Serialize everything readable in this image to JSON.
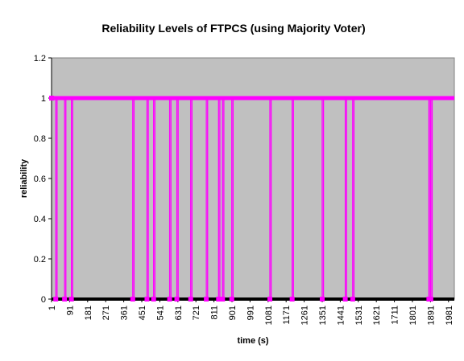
{
  "chart_data": {
    "type": "line",
    "title": "Reliability Levels of FTPCS (using Majority Voter)",
    "xlabel": "time (s)",
    "ylabel": "reliability",
    "xlim": [
      1,
      2010
    ],
    "ylim": [
      0,
      1.2
    ],
    "y_ticks": [
      "0",
      "0.2",
      "0.4",
      "0.6",
      "0.8",
      "1",
      "1.2"
    ],
    "x_ticks": [
      "1",
      "91",
      "181",
      "271",
      "361",
      "451",
      "541",
      "631",
      "721",
      "811",
      "901",
      "991",
      "1081",
      "1171",
      "1261",
      "1351",
      "1441",
      "1531",
      "1621",
      "1711",
      "1801",
      "1891",
      "1981"
    ],
    "grid": false,
    "legend": "none",
    "series": [
      {
        "baseline": 1,
        "dips": [
          {
            "time": 22,
            "value": 0
          },
          {
            "time": 66,
            "value": 0
          },
          {
            "time": 100,
            "value": 0
          },
          {
            "time": 406,
            "value": 0
          },
          {
            "time": 477,
            "value": 0
          },
          {
            "time": 510,
            "value": 0
          },
          {
            "time": 590,
            "value": 0
          },
          {
            "time": 626,
            "value": 0
          },
          {
            "time": 695,
            "value": 0
          },
          {
            "time": 773,
            "value": 0
          },
          {
            "time": 834,
            "value": 0
          },
          {
            "time": 854,
            "value": 0
          },
          {
            "time": 900,
            "value": 0
          },
          {
            "time": 1090,
            "value": 0
          },
          {
            "time": 1201,
            "value": 0
          },
          {
            "time": 1351,
            "value": 0
          },
          {
            "time": 1466,
            "value": 0
          },
          {
            "time": 1503,
            "value": 0
          },
          {
            "time": 1883,
            "value": 0
          },
          {
            "time": 1893,
            "value": 0
          }
        ]
      }
    ],
    "colors": {
      "plot_area": "#c0c0c0",
      "series": "#ff00ff",
      "baseline_bar": "#000000",
      "axis": "#000000"
    }
  }
}
